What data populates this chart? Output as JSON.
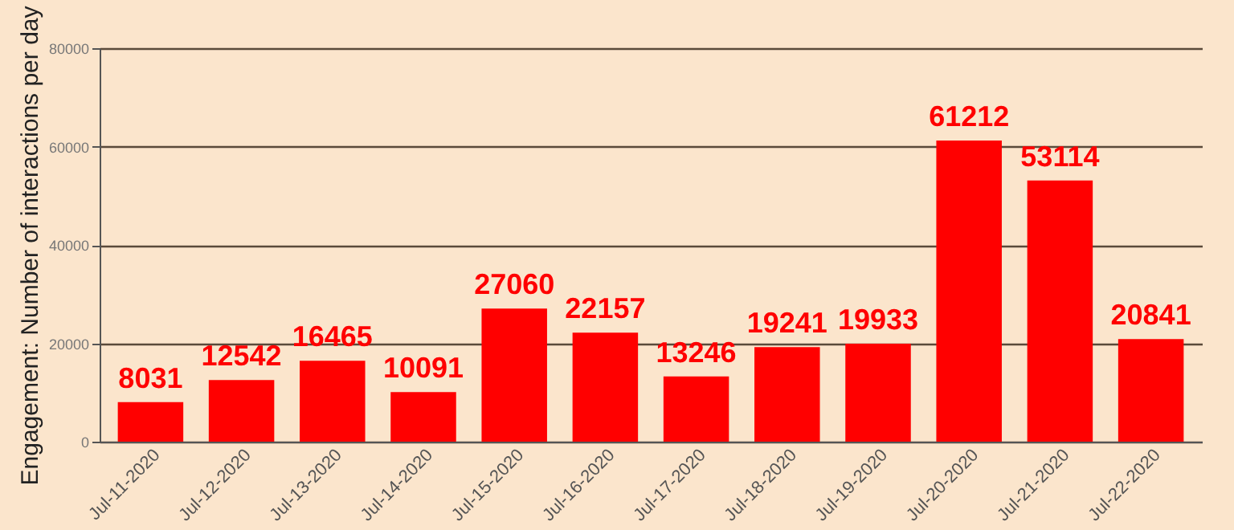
{
  "chart_data": {
    "type": "bar",
    "ylabel": "Engagement: Number of interactions per day",
    "categories": [
      "Jul-11-2020",
      "Jul-12-2020",
      "Jul-13-2020",
      "Jul-14-2020",
      "Jul-15-2020",
      "Jul-16-2020",
      "Jul-17-2020",
      "Jul-18-2020",
      "Jul-19-2020",
      "Jul-20-2020",
      "Jul-21-2020",
      "Jul-22-2020"
    ],
    "values": [
      8031,
      12542,
      16465,
      10091,
      27060,
      22157,
      13246,
      19241,
      19933,
      61212,
      53114,
      20841
    ],
    "color": "#ff0000",
    "ylim": [
      0,
      80000
    ],
    "yticks": [
      0,
      20000,
      40000,
      60000,
      80000
    ],
    "grid": "y",
    "data_labels": true
  }
}
